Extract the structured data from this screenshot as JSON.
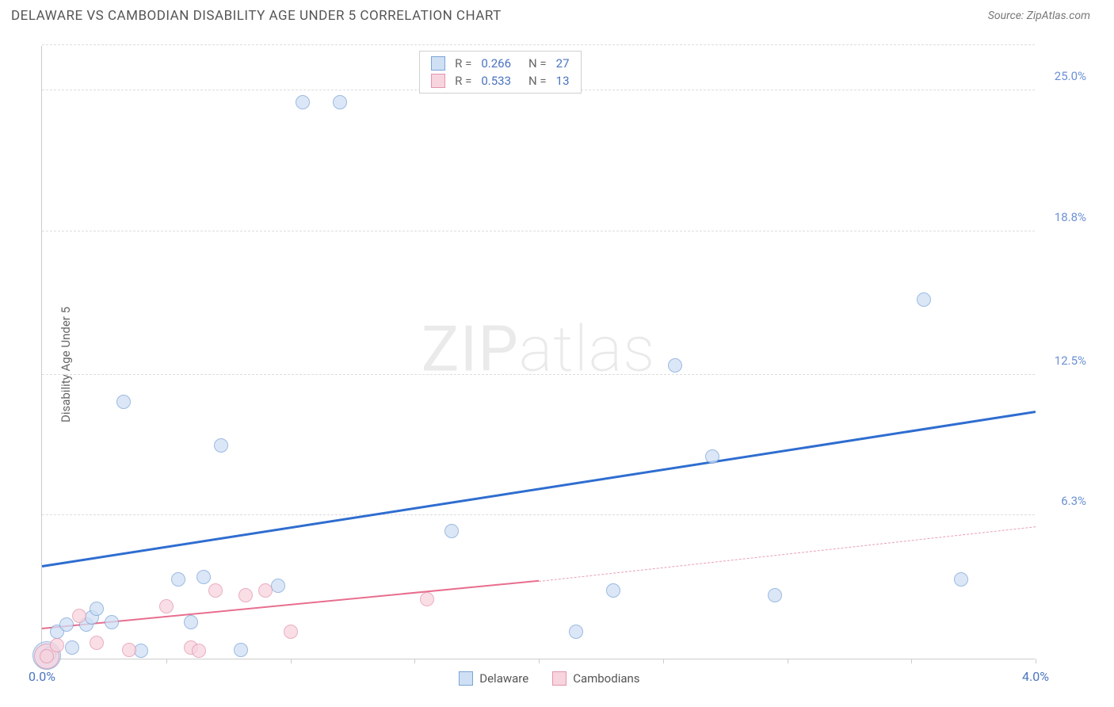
{
  "title": "DELAWARE VS CAMBODIAN DISABILITY AGE UNDER 5 CORRELATION CHART",
  "source_label": "Source: ",
  "source_name": "ZipAtlas.com",
  "ylabel": "Disability Age Under 5",
  "watermark_bold": "ZIP",
  "watermark_thin": "atlas",
  "chart": {
    "type": "scatter",
    "xlim": [
      0.0,
      4.0
    ],
    "ylim": [
      0.0,
      27.0
    ],
    "x_ticks": [
      0.0,
      0.5,
      1.0,
      1.5,
      2.0,
      2.5,
      3.0,
      3.5,
      4.0
    ],
    "x_tick_labels": {
      "0": "0.0%",
      "8": "4.0%"
    },
    "y_grid": [
      6.3,
      12.5,
      18.8,
      25.0
    ],
    "y_tick_labels": [
      "6.3%",
      "12.5%",
      "18.8%",
      "25.0%"
    ],
    "y_tick_color": "#6b90d4",
    "x_tick_color": "#4a74c0",
    "background_color": "#ffffff",
    "grid_color": "#dddddd",
    "series": [
      {
        "name": "Delaware",
        "fill": "#cfe0f5",
        "stroke": "#7ba3d6",
        "opacity": 0.75,
        "r": 9,
        "points": [
          [
            0.03,
            0.2
          ],
          [
            0.06,
            1.2
          ],
          [
            0.1,
            1.5
          ],
          [
            0.12,
            0.5
          ],
          [
            0.18,
            1.5
          ],
          [
            0.2,
            1.8
          ],
          [
            0.22,
            2.2
          ],
          [
            0.28,
            1.6
          ],
          [
            0.33,
            11.3
          ],
          [
            0.4,
            0.35
          ],
          [
            0.55,
            3.5
          ],
          [
            0.6,
            1.6
          ],
          [
            0.65,
            3.6
          ],
          [
            0.72,
            9.4
          ],
          [
            0.8,
            0.4
          ],
          [
            0.95,
            3.2
          ],
          [
            1.05,
            24.5
          ],
          [
            1.2,
            24.5
          ],
          [
            1.65,
            5.6
          ],
          [
            2.15,
            1.2
          ],
          [
            2.3,
            3.0
          ],
          [
            2.55,
            12.9
          ],
          [
            2.7,
            8.9
          ],
          [
            2.95,
            2.8
          ],
          [
            3.55,
            15.8
          ],
          [
            3.7,
            3.5
          ]
        ],
        "big_point": {
          "x": 0.02,
          "y": 0.15,
          "r": 18
        },
        "trend": {
          "x0": 0.0,
          "y0": 4.0,
          "x1": 4.0,
          "y1": 10.8,
          "color": "#2f6dd0",
          "width": 3,
          "dashed": false
        }
      },
      {
        "name": "Cambodians",
        "fill": "#f7d4de",
        "stroke": "#e494ac",
        "opacity": 0.75,
        "r": 9,
        "points": [
          [
            0.02,
            0.1
          ],
          [
            0.06,
            0.6
          ],
          [
            0.15,
            1.9
          ],
          [
            0.22,
            0.7
          ],
          [
            0.35,
            0.4
          ],
          [
            0.5,
            2.3
          ],
          [
            0.6,
            0.5
          ],
          [
            0.63,
            0.35
          ],
          [
            0.7,
            3.0
          ],
          [
            0.82,
            2.8
          ],
          [
            0.9,
            3.0
          ],
          [
            1.0,
            1.2
          ],
          [
            1.55,
            2.6
          ]
        ],
        "big_point": {
          "x": 0.02,
          "y": 0.1,
          "r": 16
        },
        "trend_solid": {
          "x0": 0.0,
          "y0": 1.3,
          "x1": 2.0,
          "y1": 3.4,
          "color": "#e86e8e",
          "width": 2.5
        },
        "trend_dashed": {
          "x0": 2.0,
          "y0": 3.4,
          "x1": 4.0,
          "y1": 5.8,
          "color": "#e8a0b4",
          "width": 1
        }
      }
    ]
  },
  "top_legend": {
    "rows": [
      {
        "swatch_fill": "#cfe0f5",
        "swatch_stroke": "#7ba3d6",
        "r_label": "R =",
        "r_val": "0.266",
        "n_label": "N =",
        "n_val": "27"
      },
      {
        "swatch_fill": "#f7d4de",
        "swatch_stroke": "#e494ac",
        "r_label": "R =",
        "r_val": "0.533",
        "n_label": "N =",
        "n_val": "13"
      }
    ],
    "label_color": "#666",
    "value_color": "#4a74c0"
  },
  "bottom_legend": [
    {
      "swatch_fill": "#cfe0f5",
      "swatch_stroke": "#7ba3d6",
      "label": "Delaware"
    },
    {
      "swatch_fill": "#f7d4de",
      "swatch_stroke": "#e494ac",
      "label": "Cambodians"
    }
  ]
}
